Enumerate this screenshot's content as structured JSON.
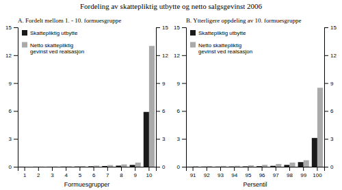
{
  "title": "Fordeling av skattepliktig utbytte og netto salgsgevinst 2006",
  "chart_data": [
    {
      "type": "bar",
      "title": "A.  Fordelt mellom 1. - 10. formuesgruppe",
      "xlabel": "Formuesgrupper",
      "categories": [
        "1",
        "2",
        "3",
        "4",
        "5",
        "6",
        "7",
        "8",
        "9",
        "10"
      ],
      "series": [
        {
          "name": "Skattepliktig utbytte",
          "color": "#1a1a1a",
          "values": [
            0.01,
            0.01,
            0.01,
            0.02,
            0.03,
            0.05,
            0.08,
            0.12,
            0.2,
            5.9
          ]
        },
        {
          "name": "Netto skattepliktig\ngevinst ved realsasjon",
          "color": "#aaaaaa",
          "values": [
            0.01,
            0.02,
            0.03,
            0.05,
            0.08,
            0.12,
            0.18,
            0.25,
            0.45,
            13.0
          ]
        }
      ],
      "ylim": [
        0,
        15
      ],
      "yticks": [
        0,
        3,
        6,
        9,
        12,
        15
      ],
      "y2lim": [
        0,
        15
      ],
      "y2ticks": [
        0,
        3,
        6,
        9,
        12,
        15
      ],
      "legend": "upper left",
      "grid": false
    },
    {
      "type": "bar",
      "title": "B.  Ytterligere oppdeling av 10. formuesgruppe",
      "xlabel": "Persentil",
      "categories": [
        "91",
        "92",
        "93",
        "94",
        "95",
        "96",
        "97",
        "98",
        "99",
        "100"
      ],
      "series": [
        {
          "name": "Skattepliktig utbytte",
          "color": "#1a1a1a",
          "values": [
            0.01,
            0.02,
            0.02,
            0.03,
            0.04,
            0.06,
            0.1,
            0.2,
            0.5,
            3.1
          ]
        },
        {
          "name": "Netto skattepliktig\ngevinst ved realsasjon",
          "color": "#aaaaaa",
          "values": [
            0.07,
            0.08,
            0.09,
            0.1,
            0.15,
            0.2,
            0.3,
            0.45,
            0.7,
            8.5
          ]
        }
      ],
      "ylim": [
        0,
        15
      ],
      "yticks": [
        0,
        3,
        6,
        9,
        12,
        15
      ],
      "y2lim": [
        0,
        15
      ],
      "y2ticks": [
        0,
        3,
        6,
        9,
        12,
        15
      ],
      "legend": "upper left",
      "grid": false
    }
  ]
}
